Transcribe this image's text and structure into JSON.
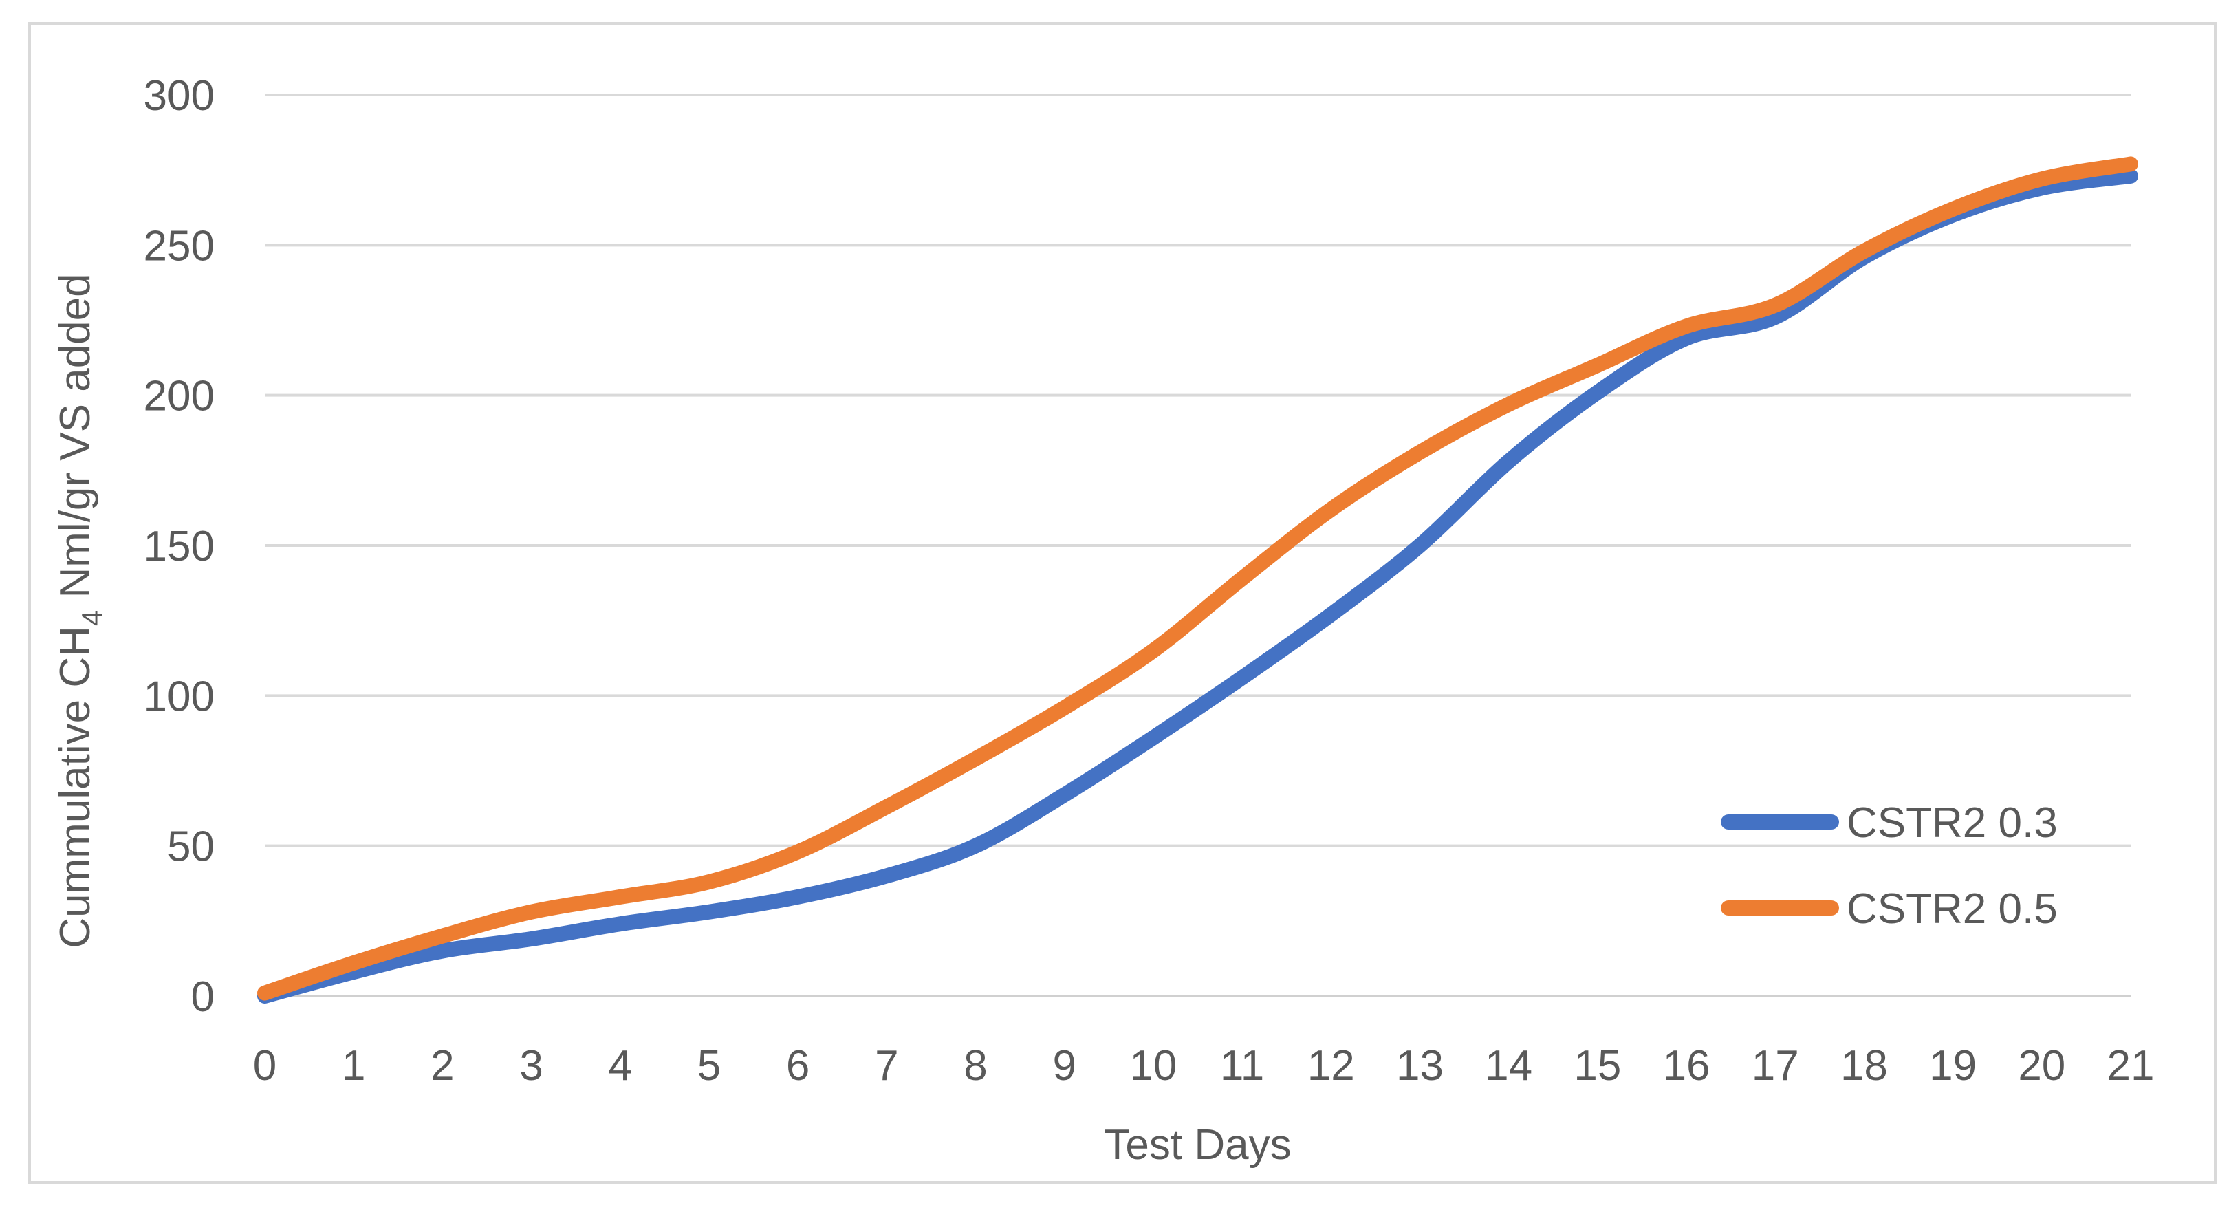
{
  "chart_data": {
    "type": "line",
    "title": "",
    "xlabel": "Test Days",
    "ylabel": {
      "prefix": "Cummulative CH",
      "subscript": "4",
      "suffix": " Nml/gr VS added"
    },
    "xlim": [
      0,
      21
    ],
    "ylim": [
      0,
      300
    ],
    "x_ticks": [
      0,
      1,
      2,
      3,
      4,
      5,
      6,
      7,
      8,
      9,
      10,
      11,
      12,
      13,
      14,
      15,
      16,
      17,
      18,
      19,
      20,
      21
    ],
    "y_ticks": [
      0,
      50,
      100,
      150,
      200,
      250,
      300
    ],
    "grid": "horizontal",
    "legend_position": "right",
    "x": [
      0,
      1,
      2,
      3,
      4,
      5,
      6,
      7,
      8,
      9,
      10,
      11,
      12,
      13,
      14,
      15,
      16,
      17,
      18,
      19,
      20,
      21
    ],
    "series": [
      {
        "name": "CSTR2 0.3",
        "color": "#4472C4",
        "values": [
          0,
          8,
          15,
          19,
          24,
          28,
          33,
          40,
          50,
          67,
          86,
          106,
          127,
          150,
          178,
          201,
          219,
          226,
          246,
          260,
          269,
          273
        ]
      },
      {
        "name": "CSTR2 0.5",
        "color": "#ED7D31",
        "values": [
          1,
          11,
          20,
          28,
          33,
          38,
          48,
          63,
          79,
          96,
          115,
          139,
          162,
          181,
          197,
          210,
          223,
          230,
          248,
          262,
          272,
          277
        ]
      }
    ]
  }
}
